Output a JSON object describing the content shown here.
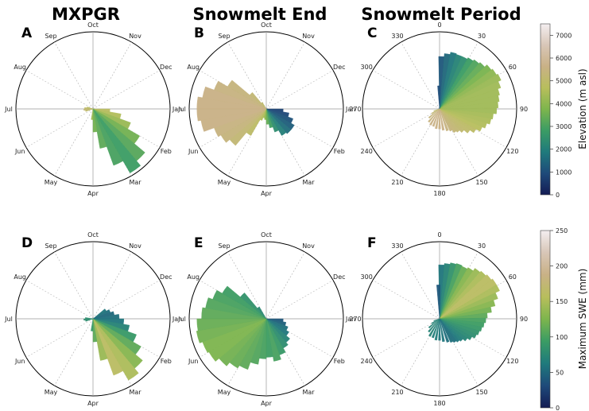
{
  "column_titles": [
    "MXPGR",
    "Snowmelt End",
    "Snowmelt Period"
  ],
  "colorbars": [
    {
      "label": "Elevation (m asl)",
      "ticks": [
        "0",
        "1000",
        "2000",
        "3000",
        "4000",
        "5000",
        "6000",
        "7000"
      ],
      "min": 0,
      "max": 7500
    },
    {
      "label": "Maximum SWE (mm)",
      "ticks": [
        "0",
        "50",
        "100",
        "150",
        "200",
        "250"
      ],
      "min": 0,
      "max": 250
    }
  ],
  "colormap_stops": [
    "#141c54",
    "#1e4a7a",
    "#1f7a7c",
    "#3a9c64",
    "#7db54d",
    "#b8be5c",
    "#c9b186",
    "#d8c6b7",
    "#f4eef0"
  ],
  "month_labels": [
    "Oct",
    "Nov",
    "Dec",
    "Jan",
    "Feb",
    "Mar",
    "Apr",
    "May",
    "Jun",
    "Jul",
    "Aug",
    "Sep"
  ],
  "degree_labels": [
    "0",
    "30",
    "60",
    "90",
    "120",
    "150",
    "180",
    "210",
    "240",
    "270",
    "300",
    "330"
  ],
  "chart_data": [
    {
      "panel": "A",
      "type": "polar-bar",
      "column": "MXPGR",
      "colorbar": "Elevation (m asl)",
      "angle_unit": "month",
      "radial_unit": "relative frequency",
      "bars": [
        {
          "angle": 95,
          "radius": 0.22,
          "color_value": 4800
        },
        {
          "angle": 105,
          "radius": 0.37,
          "color_value": 4600
        },
        {
          "angle": 115,
          "radius": 0.52,
          "color_value": 4200
        },
        {
          "angle": 125,
          "radius": 0.7,
          "color_value": 3600
        },
        {
          "angle": 135,
          "radius": 0.88,
          "color_value": 3200
        },
        {
          "angle": 145,
          "radius": 0.96,
          "color_value": 2800
        },
        {
          "angle": 155,
          "radius": 0.78,
          "color_value": 3000
        },
        {
          "angle": 165,
          "radius": 0.52,
          "color_value": 3300
        },
        {
          "angle": 175,
          "radius": 0.3,
          "color_value": 3600
        },
        {
          "angle": 185,
          "radius": 0.14,
          "color_value": 4200
        },
        {
          "angle": 255,
          "radius": 0.1,
          "color_value": 5000
        },
        {
          "angle": 265,
          "radius": 0.12,
          "color_value": 5200
        },
        {
          "angle": 275,
          "radius": 0.11,
          "color_value": 5000
        },
        {
          "angle": 285,
          "radius": 0.08,
          "color_value": 4800
        }
      ]
    },
    {
      "panel": "B",
      "type": "polar-bar",
      "column": "Snowmelt End",
      "colorbar": "Elevation (m asl)",
      "angle_unit": "month",
      "radial_unit": "relative frequency",
      "bars": [
        {
          "angle": 95,
          "radius": 0.22,
          "color_value": 800
        },
        {
          "angle": 105,
          "radius": 0.3,
          "color_value": 900
        },
        {
          "angle": 115,
          "radius": 0.37,
          "color_value": 1100
        },
        {
          "angle": 125,
          "radius": 0.42,
          "color_value": 1300
        },
        {
          "angle": 135,
          "radius": 0.42,
          "color_value": 1600
        },
        {
          "angle": 145,
          "radius": 0.4,
          "color_value": 2000
        },
        {
          "angle": 155,
          "radius": 0.32,
          "color_value": 2400
        },
        {
          "angle": 165,
          "radius": 0.25,
          "color_value": 2900
        },
        {
          "angle": 175,
          "radius": 0.2,
          "color_value": 3400
        },
        {
          "angle": 185,
          "radius": 0.14,
          "color_value": 3900
        },
        {
          "angle": 195,
          "radius": 0.12,
          "color_value": 4300
        },
        {
          "angle": 205,
          "radius": 0.16,
          "color_value": 4600
        },
        {
          "angle": 215,
          "radius": 0.4,
          "color_value": 4900
        },
        {
          "angle": 225,
          "radius": 0.62,
          "color_value": 5200
        },
        {
          "angle": 235,
          "radius": 0.68,
          "color_value": 5400
        },
        {
          "angle": 245,
          "radius": 0.72,
          "color_value": 5500
        },
        {
          "angle": 255,
          "radius": 0.86,
          "color_value": 5600
        },
        {
          "angle": 265,
          "radius": 0.9,
          "color_value": 5600
        },
        {
          "angle": 275,
          "radius": 0.9,
          "color_value": 5600
        },
        {
          "angle": 285,
          "radius": 0.84,
          "color_value": 5600
        },
        {
          "angle": 295,
          "radius": 0.72,
          "color_value": 5500
        },
        {
          "angle": 305,
          "radius": 0.58,
          "color_value": 5400
        },
        {
          "angle": 315,
          "radius": 0.28,
          "color_value": 5200
        },
        {
          "angle": 325,
          "radius": 0.1,
          "color_value": 5000
        }
      ]
    },
    {
      "panel": "C",
      "type": "polar-bar",
      "column": "Snowmelt Period",
      "colorbar": "Elevation (m asl)",
      "angle_unit": "degrees",
      "radial_unit": "relative frequency",
      "bars": [
        {
          "angle": 2,
          "radius": 0.68,
          "color_value": 1200
        },
        {
          "angle": 8,
          "radius": 0.72,
          "color_value": 1500
        },
        {
          "angle": 14,
          "radius": 0.75,
          "color_value": 1800
        },
        {
          "angle": 20,
          "radius": 0.74,
          "color_value": 2100
        },
        {
          "angle": 26,
          "radius": 0.74,
          "color_value": 2400
        },
        {
          "angle": 32,
          "radius": 0.76,
          "color_value": 2800
        },
        {
          "angle": 38,
          "radius": 0.78,
          "color_value": 3100
        },
        {
          "angle": 44,
          "radius": 0.8,
          "color_value": 3400
        },
        {
          "angle": 50,
          "radius": 0.84,
          "color_value": 3700
        },
        {
          "angle": 56,
          "radius": 0.86,
          "color_value": 4000
        },
        {
          "angle": 62,
          "radius": 0.88,
          "color_value": 4200
        },
        {
          "angle": 68,
          "radius": 0.84,
          "color_value": 4300
        },
        {
          "angle": 74,
          "radius": 0.8,
          "color_value": 4300
        },
        {
          "angle": 80,
          "radius": 0.78,
          "color_value": 4300
        },
        {
          "angle": 86,
          "radius": 0.76,
          "color_value": 4300
        },
        {
          "angle": 92,
          "radius": 0.74,
          "color_value": 4300
        },
        {
          "angle": 98,
          "radius": 0.7,
          "color_value": 4400
        },
        {
          "angle": 104,
          "radius": 0.68,
          "color_value": 4500
        },
        {
          "angle": 110,
          "radius": 0.64,
          "color_value": 4600
        },
        {
          "angle": 116,
          "radius": 0.6,
          "color_value": 4700
        },
        {
          "angle": 122,
          "radius": 0.54,
          "color_value": 4900
        },
        {
          "angle": 128,
          "radius": 0.48,
          "color_value": 5000
        },
        {
          "angle": 134,
          "radius": 0.42,
          "color_value": 5100
        },
        {
          "angle": 140,
          "radius": 0.38,
          "color_value": 5200
        },
        {
          "angle": 146,
          "radius": 0.36,
          "color_value": 5300
        },
        {
          "angle": 152,
          "radius": 0.32,
          "color_value": 5400
        },
        {
          "angle": 160,
          "radius": 0.3,
          "color_value": 5500
        },
        {
          "angle": 170,
          "radius": 0.28,
          "color_value": 5600
        },
        {
          "angle": 180,
          "radius": 0.26,
          "color_value": 5600
        },
        {
          "angle": 190,
          "radius": 0.26,
          "color_value": 5600
        },
        {
          "angle": 200,
          "radius": 0.24,
          "color_value": 5600
        },
        {
          "angle": 210,
          "radius": 0.24,
          "color_value": 5600
        },
        {
          "angle": 220,
          "radius": 0.22,
          "color_value": 5500
        },
        {
          "angle": 230,
          "radius": 0.18,
          "color_value": 5400
        },
        {
          "angle": 240,
          "radius": 0.12,
          "color_value": 5200
        },
        {
          "angle": 250,
          "radius": 0.08,
          "color_value": 5000
        },
        {
          "angle": 358,
          "radius": 0.3,
          "color_value": 1000
        }
      ]
    },
    {
      "panel": "D",
      "type": "polar-bar",
      "column": "MXPGR",
      "colorbar": "Maximum SWE (mm)",
      "angle_unit": "month",
      "radial_unit": "relative frequency",
      "bars": [
        {
          "angle": 55,
          "radius": 0.2,
          "color_value": 60
        },
        {
          "angle": 65,
          "radius": 0.24,
          "color_value": 55
        },
        {
          "angle": 75,
          "radius": 0.28,
          "color_value": 50
        },
        {
          "angle": 85,
          "radius": 0.34,
          "color_value": 55
        },
        {
          "angle": 95,
          "radius": 0.4,
          "color_value": 60
        },
        {
          "angle": 105,
          "radius": 0.48,
          "color_value": 70
        },
        {
          "angle": 115,
          "radius": 0.6,
          "color_value": 90
        },
        {
          "angle": 125,
          "radius": 0.72,
          "color_value": 110
        },
        {
          "angle": 135,
          "radius": 0.84,
          "color_value": 130
        },
        {
          "angle": 145,
          "radius": 0.92,
          "color_value": 150
        },
        {
          "angle": 155,
          "radius": 0.78,
          "color_value": 160
        },
        {
          "angle": 165,
          "radius": 0.55,
          "color_value": 140
        },
        {
          "angle": 175,
          "radius": 0.3,
          "color_value": 110
        },
        {
          "angle": 185,
          "radius": 0.16,
          "color_value": 90
        },
        {
          "angle": 255,
          "radius": 0.1,
          "color_value": 80
        },
        {
          "angle": 265,
          "radius": 0.12,
          "color_value": 80
        },
        {
          "angle": 275,
          "radius": 0.1,
          "color_value": 80
        }
      ]
    },
    {
      "panel": "E",
      "type": "polar-bar",
      "column": "Snowmelt End",
      "colorbar": "Maximum SWE (mm)",
      "angle_unit": "month",
      "radial_unit": "relative frequency",
      "bars": [
        {
          "angle": 95,
          "radius": 0.22,
          "color_value": 40
        },
        {
          "angle": 105,
          "radius": 0.26,
          "color_value": 45
        },
        {
          "angle": 115,
          "radius": 0.3,
          "color_value": 55
        },
        {
          "angle": 125,
          "radius": 0.34,
          "color_value": 60
        },
        {
          "angle": 135,
          "radius": 0.4,
          "color_value": 70
        },
        {
          "angle": 145,
          "radius": 0.44,
          "color_value": 80
        },
        {
          "angle": 155,
          "radius": 0.5,
          "color_value": 90
        },
        {
          "angle": 165,
          "radius": 0.56,
          "color_value": 100
        },
        {
          "angle": 175,
          "radius": 0.5,
          "color_value": 95
        },
        {
          "angle": 185,
          "radius": 0.52,
          "color_value": 100
        },
        {
          "angle": 195,
          "radius": 0.6,
          "color_value": 105
        },
        {
          "angle": 205,
          "radius": 0.7,
          "color_value": 110
        },
        {
          "angle": 215,
          "radius": 0.74,
          "color_value": 115
        },
        {
          "angle": 225,
          "radius": 0.8,
          "color_value": 120
        },
        {
          "angle": 235,
          "radius": 0.86,
          "color_value": 125
        },
        {
          "angle": 245,
          "radius": 0.88,
          "color_value": 125
        },
        {
          "angle": 255,
          "radius": 0.92,
          "color_value": 120
        },
        {
          "angle": 265,
          "radius": 0.9,
          "color_value": 115
        },
        {
          "angle": 275,
          "radius": 0.84,
          "color_value": 110
        },
        {
          "angle": 285,
          "radius": 0.8,
          "color_value": 105
        },
        {
          "angle": 295,
          "radius": 0.74,
          "color_value": 100
        },
        {
          "angle": 305,
          "radius": 0.66,
          "color_value": 95
        },
        {
          "angle": 315,
          "radius": 0.44,
          "color_value": 85
        },
        {
          "angle": 325,
          "radius": 0.18,
          "color_value": 75
        }
      ]
    },
    {
      "panel": "F",
      "type": "polar-bar",
      "column": "Snowmelt Period",
      "colorbar": "Maximum SWE (mm)",
      "angle_unit": "degrees",
      "radial_unit": "relative frequency",
      "bars": [
        {
          "angle": 2,
          "radius": 0.7,
          "color_value": 60
        },
        {
          "angle": 8,
          "radius": 0.72,
          "color_value": 70
        },
        {
          "angle": 14,
          "radius": 0.74,
          "color_value": 85
        },
        {
          "angle": 20,
          "radius": 0.75,
          "color_value": 100
        },
        {
          "angle": 26,
          "radius": 0.74,
          "color_value": 115
        },
        {
          "angle": 32,
          "radius": 0.76,
          "color_value": 130
        },
        {
          "angle": 38,
          "radius": 0.8,
          "color_value": 140
        },
        {
          "angle": 44,
          "radius": 0.82,
          "color_value": 150
        },
        {
          "angle": 50,
          "radius": 0.84,
          "color_value": 160
        },
        {
          "angle": 56,
          "radius": 0.86,
          "color_value": 160
        },
        {
          "angle": 62,
          "radius": 0.86,
          "color_value": 150
        },
        {
          "angle": 68,
          "radius": 0.8,
          "color_value": 140
        },
        {
          "angle": 74,
          "radius": 0.74,
          "color_value": 130
        },
        {
          "angle": 80,
          "radius": 0.68,
          "color_value": 120
        },
        {
          "angle": 86,
          "radius": 0.62,
          "color_value": 110
        },
        {
          "angle": 92,
          "radius": 0.6,
          "color_value": 100
        },
        {
          "angle": 98,
          "radius": 0.58,
          "color_value": 95
        },
        {
          "angle": 104,
          "radius": 0.56,
          "color_value": 90
        },
        {
          "angle": 110,
          "radius": 0.54,
          "color_value": 85
        },
        {
          "angle": 116,
          "radius": 0.52,
          "color_value": 80
        },
        {
          "angle": 122,
          "radius": 0.48,
          "color_value": 75
        },
        {
          "angle": 128,
          "radius": 0.44,
          "color_value": 70
        },
        {
          "angle": 134,
          "radius": 0.4,
          "color_value": 65
        },
        {
          "angle": 140,
          "radius": 0.38,
          "color_value": 60
        },
        {
          "angle": 146,
          "radius": 0.36,
          "color_value": 55
        },
        {
          "angle": 152,
          "radius": 0.34,
          "color_value": 55
        },
        {
          "angle": 160,
          "radius": 0.32,
          "color_value": 55
        },
        {
          "angle": 170,
          "radius": 0.3,
          "color_value": 60
        },
        {
          "angle": 180,
          "radius": 0.28,
          "color_value": 60
        },
        {
          "angle": 190,
          "radius": 0.28,
          "color_value": 65
        },
        {
          "angle": 200,
          "radius": 0.26,
          "color_value": 65
        },
        {
          "angle": 210,
          "radius": 0.26,
          "color_value": 70
        },
        {
          "angle": 220,
          "radius": 0.22,
          "color_value": 70
        },
        {
          "angle": 230,
          "radius": 0.18,
          "color_value": 70
        },
        {
          "angle": 240,
          "radius": 0.12,
          "color_value": 70
        },
        {
          "angle": 250,
          "radius": 0.08,
          "color_value": 70
        },
        {
          "angle": 358,
          "radius": 0.44,
          "color_value": 40
        }
      ]
    }
  ]
}
